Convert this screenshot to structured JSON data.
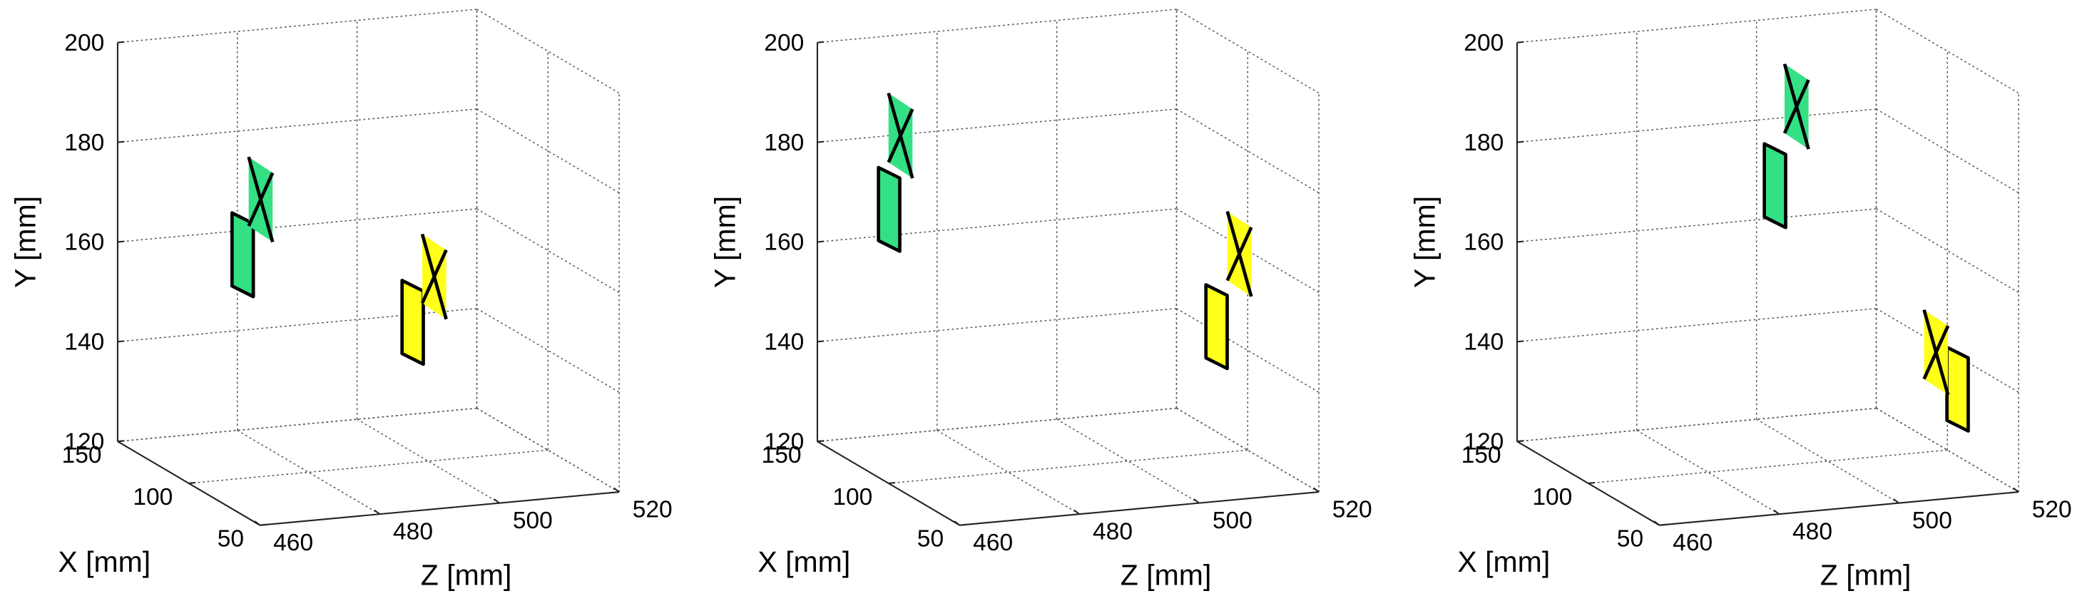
{
  "chart_data": [
    {
      "type": "scatter3d",
      "xlabel": "X [mm]",
      "ylabel": "Y [mm]",
      "zlabel": "Z [mm]",
      "xlim": [
        50,
        150
      ],
      "ylim": [
        120,
        200
      ],
      "zlim": [
        460,
        520
      ],
      "xticks": [
        50,
        100,
        150
      ],
      "yticks": [
        120,
        140,
        160,
        180,
        200
      ],
      "zticks": [
        460,
        480,
        500,
        520
      ],
      "grid": true,
      "series": [
        {
          "color": "#33e083",
          "markers": [
            "plate",
            "cross"
          ],
          "x": [
            100,
            100
          ],
          "z": [
            469,
            472
          ],
          "values": [
            165.5,
            175.6
          ]
        },
        {
          "color": "#ffff1a",
          "markers": [
            "plate",
            "cross"
          ],
          "x": [
            100,
            100
          ],
          "z": [
            497.4,
            501
          ],
          "values": [
            148.8,
            156.9
          ]
        }
      ]
    },
    {
      "type": "scatter3d",
      "xlabel": "X [mm]",
      "ylabel": "Y [mm]",
      "zlabel": "Z [mm]",
      "xlim": [
        50,
        150
      ],
      "ylim": [
        120,
        200
      ],
      "zlim": [
        460,
        520
      ],
      "xticks": [
        50,
        100,
        150
      ],
      "yticks": [
        120,
        140,
        160,
        180,
        200
      ],
      "zticks": [
        460,
        480,
        500,
        520
      ],
      "grid": true,
      "series": [
        {
          "color": "#33e083",
          "markers": [
            "plate",
            "cross"
          ],
          "x": [
            100,
            100
          ],
          "z": [
            460.1,
            462
          ],
          "values": [
            175.6,
            189.5
          ]
        },
        {
          "color": "#ffff1a",
          "markers": [
            "plate",
            "cross"
          ],
          "x": [
            100,
            100
          ],
          "z": [
            514.8,
            518.6
          ],
          "values": [
            146,
            159.5
          ]
        }
      ]
    },
    {
      "type": "scatter3d",
      "xlabel": "X [mm]",
      "ylabel": "Y [mm]",
      "zlabel": "Z [mm]",
      "xlim": [
        50,
        150
      ],
      "ylim": [
        120,
        200
      ],
      "zlim": [
        460,
        520
      ],
      "xticks": [
        50,
        100,
        150
      ],
      "yticks": [
        120,
        140,
        160,
        180,
        200
      ],
      "zticks": [
        460,
        480,
        500,
        520
      ],
      "grid": true,
      "series": [
        {
          "color": "#33e083",
          "markers": [
            "plate",
            "cross"
          ],
          "x": [
            100,
            100
          ],
          "z": [
            491.2,
            494.8
          ],
          "values": [
            176.9,
            191.7
          ]
        },
        {
          "color": "#ffff1a",
          "markers": [
            "plate",
            "cross"
          ],
          "x": [
            100,
            100
          ],
          "z": [
            521.7,
            518.1
          ],
          "values": [
            132.7,
            139.8
          ]
        }
      ]
    }
  ]
}
